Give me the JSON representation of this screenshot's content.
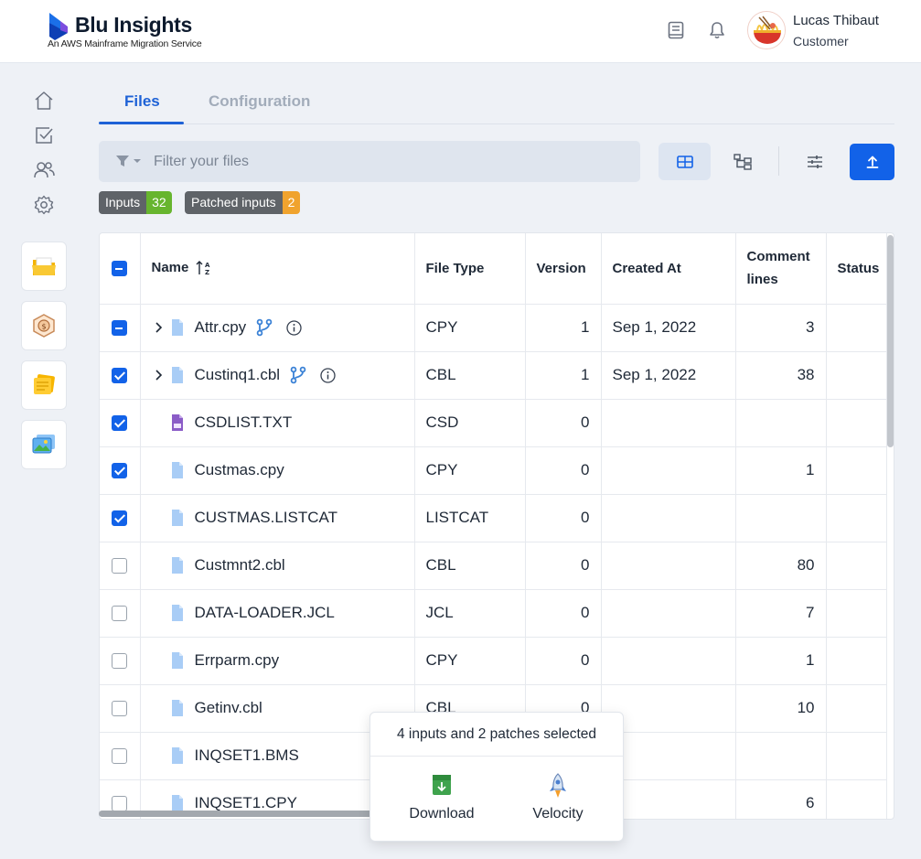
{
  "app": {
    "title": "Blu Insights",
    "subtitle": "An AWS Mainframe Migration Service"
  },
  "user": {
    "name": "Lucas Thibaut",
    "role": "Customer"
  },
  "tabs": [
    {
      "label": "Files",
      "active": true
    },
    {
      "label": "Configuration",
      "active": false
    }
  ],
  "filter": {
    "placeholder": "Filter your files",
    "value": ""
  },
  "badges": [
    {
      "label": "Inputs",
      "count": "32",
      "color": "#67b52e"
    },
    {
      "label": "Patched inputs",
      "count": "2",
      "color": "#f0a32e"
    }
  ],
  "table": {
    "columns": [
      "Name",
      "File Type",
      "Version",
      "Created At",
      "Comment lines",
      "Status"
    ],
    "rows": [
      {
        "check": "indeterminate",
        "expandable": true,
        "icon": "file-icon",
        "name": "Attr.cpy",
        "branch": true,
        "info": true,
        "type": "CPY",
        "version": "1",
        "created": "Sep 1, 2022",
        "comments": "3",
        "status": ""
      },
      {
        "check": "checked",
        "expandable": true,
        "icon": "file-icon",
        "name": "Custinq1.cbl",
        "branch": true,
        "info": true,
        "type": "CBL",
        "version": "1",
        "created": "Sep 1, 2022",
        "comments": "38",
        "status": ""
      },
      {
        "check": "checked",
        "expandable": false,
        "icon": "txt-file-icon",
        "name": "CSDLIST.TXT",
        "branch": false,
        "info": false,
        "type": "CSD",
        "version": "0",
        "created": "",
        "comments": "",
        "status": ""
      },
      {
        "check": "checked",
        "expandable": false,
        "icon": "file-icon",
        "name": "Custmas.cpy",
        "branch": false,
        "info": false,
        "type": "CPY",
        "version": "0",
        "created": "",
        "comments": "1",
        "status": ""
      },
      {
        "check": "checked",
        "expandable": false,
        "icon": "file-icon",
        "name": "CUSTMAS.LISTCAT",
        "branch": false,
        "info": false,
        "type": "LISTCAT",
        "version": "0",
        "created": "",
        "comments": "",
        "status": ""
      },
      {
        "check": "unchecked",
        "expandable": false,
        "icon": "file-icon",
        "name": "Custmnt2.cbl",
        "branch": false,
        "info": false,
        "type": "CBL",
        "version": "0",
        "created": "",
        "comments": "80",
        "status": ""
      },
      {
        "check": "unchecked",
        "expandable": false,
        "icon": "file-icon",
        "name": "DATA-LOADER.JCL",
        "branch": false,
        "info": false,
        "type": "JCL",
        "version": "0",
        "created": "",
        "comments": "7",
        "status": ""
      },
      {
        "check": "unchecked",
        "expandable": false,
        "icon": "file-icon",
        "name": "Errparm.cpy",
        "branch": false,
        "info": false,
        "type": "CPY",
        "version": "0",
        "created": "",
        "comments": "1",
        "status": ""
      },
      {
        "check": "unchecked",
        "expandable": false,
        "icon": "file-icon",
        "name": "Getinv.cbl",
        "branch": false,
        "info": false,
        "type": "CBL",
        "version": "0",
        "created": "",
        "comments": "10",
        "status": ""
      },
      {
        "check": "unchecked",
        "expandable": false,
        "icon": "file-icon",
        "name": "INQSET1.BMS",
        "branch": false,
        "info": false,
        "type": "",
        "version": "",
        "created": "",
        "comments": "",
        "status": ""
      },
      {
        "check": "unchecked",
        "expandable": false,
        "icon": "file-icon",
        "name": "INQSET1.CPY",
        "branch": false,
        "info": false,
        "type": "",
        "version": "",
        "created": "",
        "comments": "6",
        "status": ""
      }
    ]
  },
  "selection_popup": {
    "message": "4 inputs and 2 patches selected",
    "actions": [
      {
        "label": "Download",
        "icon": "download-icon"
      },
      {
        "label": "Velocity",
        "icon": "rocket-icon"
      }
    ]
  },
  "colors": {
    "accent": "#1262e8",
    "tab_active": "#1e62d6"
  }
}
